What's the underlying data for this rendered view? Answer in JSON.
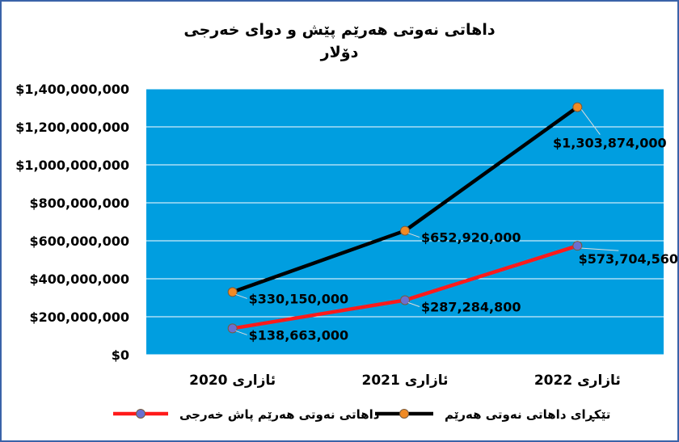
{
  "chart_data": {
    "type": "line",
    "title": "داهاتی نەوتی هەرێم پێش و دوای خەرجی",
    "subtitle": "دۆلار",
    "categories": [
      "ئازاری 2020",
      "ئازاری 2021",
      "ئازاری 2022"
    ],
    "ylim": [
      0,
      1400000000
    ],
    "yticks": [
      0,
      200000000,
      400000000,
      600000000,
      800000000,
      1000000000,
      1200000000,
      1400000000
    ],
    "ytick_labels": [
      "$0",
      "$200,000,000",
      "$400,000,000",
      "$600,000,000",
      "$800,000,000",
      "$1,000,000,000",
      "$1,200,000,000",
      "$1,400,000,000"
    ],
    "grid": true,
    "legend_position": "bottom",
    "plot_background": "#009ee0",
    "series": [
      {
        "name": "تێکڕای داهاتی نەوتی هەرێم",
        "values": [
          330150000,
          652920000,
          1303874000
        ],
        "labels": [
          "$330,150,000",
          "$652,920,000",
          "$1,303,874,000"
        ],
        "line_color": "#000000",
        "marker_color": "#f08a24"
      },
      {
        "name": "داهاتی نەوتی هەرێم پاش خەرجی",
        "values": [
          138663000,
          287284800,
          573704560
        ],
        "labels": [
          "$138,663,000",
          "$287,284,800",
          "$573,704,560"
        ],
        "line_color": "#ff1a1a",
        "marker_color": "#6a6fd0"
      }
    ]
  }
}
